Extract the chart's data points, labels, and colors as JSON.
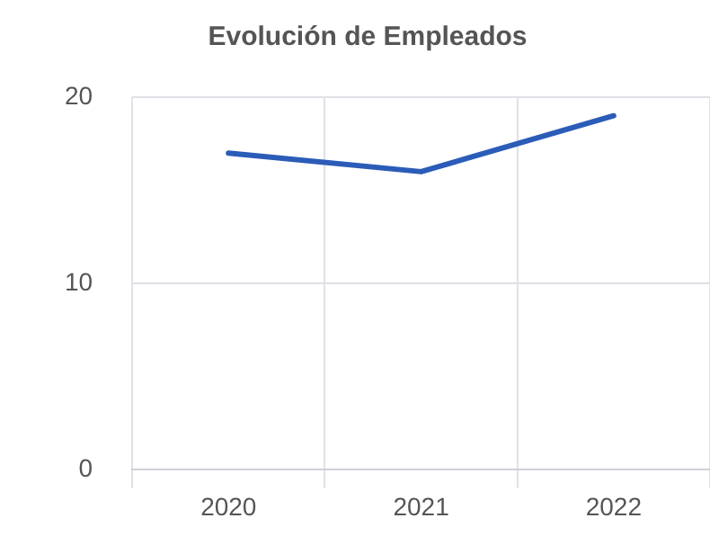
{
  "chart_data": {
    "type": "line",
    "title": "Evolución de Empleados",
    "categories": [
      "2020",
      "2021",
      "2022"
    ],
    "series": [
      {
        "color": "#2b5cb8",
        "values": [
          17,
          16,
          19
        ]
      }
    ],
    "ylim": [
      0,
      20
    ],
    "yticks": [
      0,
      10,
      20
    ],
    "grid": true,
    "legend": false,
    "marker": "none",
    "line_style": "solid"
  }
}
